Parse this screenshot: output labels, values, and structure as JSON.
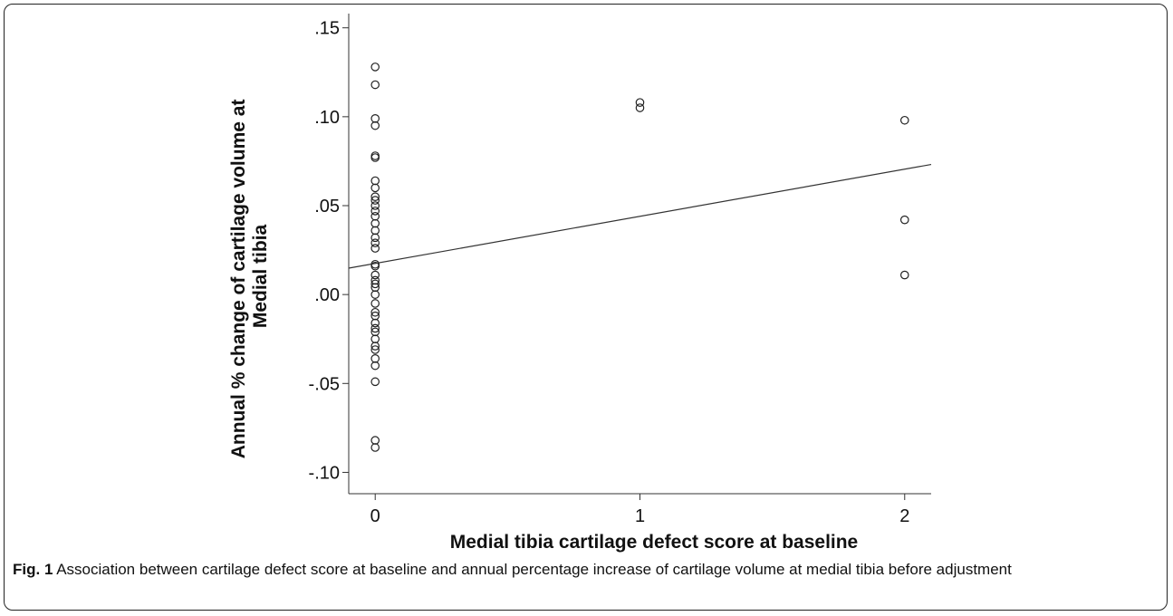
{
  "chart_data": {
    "type": "scatter",
    "xlabel": "Medial tibia cartilage defect score at baseline",
    "ylabel": "Annual % change of cartilage volume at Medial tibia",
    "ylabel_lines": [
      "Annual % change of cartilage volume at",
      "Medial tibia"
    ],
    "x_ticks": [
      0,
      1,
      2
    ],
    "x_tick_labels": [
      "0",
      "1",
      "2"
    ],
    "y_ticks": [
      0.15,
      0.1,
      0.05,
      0.0,
      -0.05,
      -0.1
    ],
    "y_tick_labels": [
      ".15",
      ".10",
      ".05",
      ".00",
      "-.05",
      "-.10"
    ],
    "xlim": [
      -0.1,
      2.1
    ],
    "ylim": [
      -0.112,
      0.158
    ],
    "grid": false,
    "points": [
      {
        "x": 0,
        "y": 0.128
      },
      {
        "x": 0,
        "y": 0.118
      },
      {
        "x": 0,
        "y": 0.099
      },
      {
        "x": 0,
        "y": 0.095
      },
      {
        "x": 0,
        "y": 0.078
      },
      {
        "x": 0,
        "y": 0.077
      },
      {
        "x": 0,
        "y": 0.064
      },
      {
        "x": 0,
        "y": 0.06
      },
      {
        "x": 0,
        "y": 0.055
      },
      {
        "x": 0,
        "y": 0.053
      },
      {
        "x": 0,
        "y": 0.05
      },
      {
        "x": 0,
        "y": 0.047
      },
      {
        "x": 0,
        "y": 0.044
      },
      {
        "x": 0,
        "y": 0.04
      },
      {
        "x": 0,
        "y": 0.036
      },
      {
        "x": 0,
        "y": 0.032
      },
      {
        "x": 0,
        "y": 0.029
      },
      {
        "x": 0,
        "y": 0.026
      },
      {
        "x": 0,
        "y": 0.017
      },
      {
        "x": 0,
        "y": 0.016
      },
      {
        "x": 0,
        "y": 0.011
      },
      {
        "x": 0,
        "y": 0.008
      },
      {
        "x": 0,
        "y": 0.006
      },
      {
        "x": 0,
        "y": 0.004
      },
      {
        "x": 0,
        "y": 0.0
      },
      {
        "x": 0,
        "y": -0.005
      },
      {
        "x": 0,
        "y": -0.01
      },
      {
        "x": 0,
        "y": -0.012
      },
      {
        "x": 0,
        "y": -0.016
      },
      {
        "x": 0,
        "y": -0.019
      },
      {
        "x": 0,
        "y": -0.021
      },
      {
        "x": 0,
        "y": -0.025
      },
      {
        "x": 0,
        "y": -0.029
      },
      {
        "x": 0,
        "y": -0.031
      },
      {
        "x": 0,
        "y": -0.036
      },
      {
        "x": 0,
        "y": -0.04
      },
      {
        "x": 0,
        "y": -0.049
      },
      {
        "x": 0,
        "y": -0.082
      },
      {
        "x": 0,
        "y": -0.086
      },
      {
        "x": 1,
        "y": 0.108
      },
      {
        "x": 1,
        "y": 0.105
      },
      {
        "x": 2,
        "y": 0.098
      },
      {
        "x": 2,
        "y": 0.042
      },
      {
        "x": 2,
        "y": 0.011
      }
    ],
    "fit_line": {
      "intercept": 0.0175,
      "slope": 0.0265
    }
  },
  "caption": {
    "label": "Fig. 1",
    "text": "Association between cartilage defect score at baseline and annual percentage increase of cartilage volume at medial tibia before adjustment"
  }
}
